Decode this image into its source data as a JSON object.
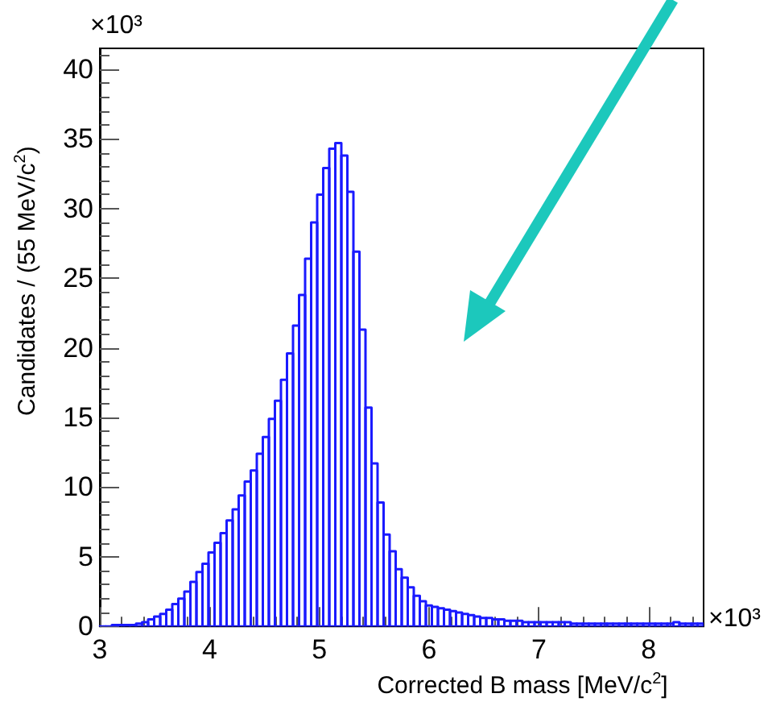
{
  "chart_data": {
    "type": "histogram",
    "xlabel": "Corrected B mass [MeV/c$^{2}$]",
    "ylabel": "Candidates / (55 MeV/c$^{2}$)",
    "annotations": [
      "×10³",
      "×10³"
    ],
    "bins": [
      3,
      3.055,
      3.11,
      3.165,
      3.22,
      3.275,
      3.33,
      3.385,
      3.44,
      3.495,
      3.55,
      3.605,
      3.66,
      3.715,
      3.77,
      3.825,
      3.88,
      3.935,
      3.99,
      4.045,
      4.1,
      4.155,
      4.21,
      4.265,
      4.32,
      4.375,
      4.43,
      4.485,
      4.54,
      4.595,
      4.65,
      4.705,
      4.76,
      4.815,
      4.87,
      4.925,
      4.98,
      5.035,
      5.09,
      5.145,
      5.2,
      5.255,
      5.31,
      5.365,
      5.42,
      5.475,
      5.53,
      5.585,
      5.64,
      5.695,
      5.75,
      5.805,
      5.86,
      5.915,
      5.97,
      6.025,
      6.08,
      6.135,
      6.19,
      6.245,
      6.3,
      6.355,
      6.41,
      6.465,
      6.52,
      6.575,
      6.63,
      6.685,
      6.74,
      6.795,
      6.85,
      6.905,
      6.96,
      7.015,
      7.07,
      7.125,
      7.18,
      7.235,
      7.29,
      7.345,
      7.4,
      7.455,
      7.51,
      7.565,
      7.62,
      7.675,
      7.73,
      7.785,
      7.84,
      7.895,
      7.95,
      8.005,
      8.06,
      8.115,
      8.17,
      8.225,
      8.28,
      8.335,
      8.39,
      8.445,
      8.5
    ],
    "values": [
      0,
      0,
      0.1,
      0.1,
      0.1,
      0.1,
      0.2,
      0.3,
      0.5,
      0.7,
      0.9,
      1.2,
      1.6,
      2.0,
      2.5,
      3.2,
      3.9,
      4.5,
      5.3,
      6.0,
      6.7,
      7.6,
      8.4,
      9.4,
      10.4,
      11.2,
      12.4,
      13.6,
      14.9,
      16.2,
      17.7,
      19.6,
      21.6,
      23.8,
      26.4,
      29.0,
      31.0,
      32.9,
      34.3,
      34.7,
      33.8,
      31.2,
      26.9,
      21.3,
      15.7,
      11.7,
      8.9,
      6.6,
      5.4,
      4.1,
      3.5,
      2.8,
      2.2,
      1.8,
      1.5,
      1.4,
      1.3,
      1.2,
      1.1,
      1.0,
      0.9,
      0.8,
      0.7,
      0.6,
      0.6,
      0.5,
      0.5,
      0.4,
      0.4,
      0.4,
      0.3,
      0.3,
      0.3,
      0.3,
      0.3,
      0.3,
      0.3,
      0.3,
      0.2,
      0.2,
      0.2,
      0.2,
      0.2,
      0.2,
      0.2,
      0.2,
      0.2,
      0.2,
      0.2,
      0.2,
      0.2,
      0.2,
      0.2,
      0.2,
      0.2,
      0.3,
      0.2,
      0.2,
      0.2,
      0.2
    ],
    "color": "#1a1aff",
    "xlim": [
      3,
      8.5
    ],
    "ylim": [
      0,
      41.5
    ],
    "xticks": [
      3,
      4,
      5,
      6,
      7,
      8
    ],
    "yticks": [
      0,
      5,
      10,
      15,
      20,
      25,
      30,
      35,
      40
    ],
    "grid": false
  }
}
